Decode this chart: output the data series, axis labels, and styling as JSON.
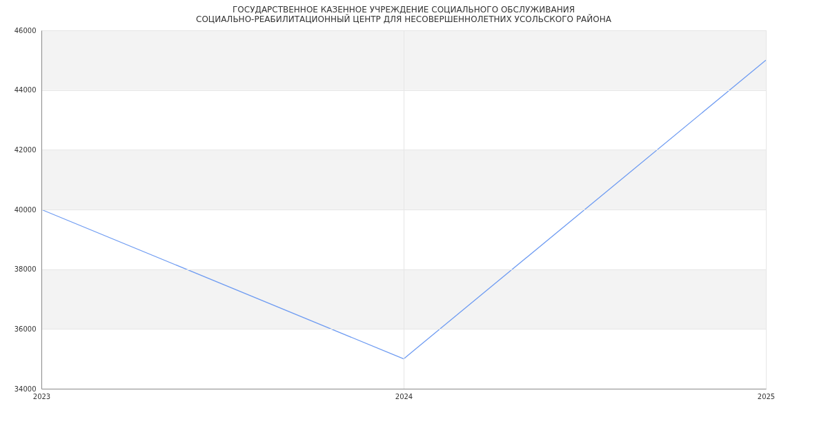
{
  "chart_data": {
    "type": "line",
    "title": "ГОСУДАРСТВЕННОЕ КАЗЕННОЕ УЧРЕЖДЕНИЕ СОЦИАЛЬНОГО ОБСЛУЖИВАНИЯ СОЦИАЛЬНО-РЕАБИЛИТАЦИОННЫЙ ЦЕНТР ДЛЯ НЕСОВЕРШЕННОЛЕТНИХ УСОЛЬСКОГО РАЙОНА",
    "categories": [
      "2023",
      "2024",
      "2025"
    ],
    "series": [
      {
        "color": "#6f9cf2",
        "values": [
          40000,
          35000,
          45000
        ]
      }
    ],
    "ylim": [
      34000,
      46000
    ],
    "yticks": [
      34000,
      36000,
      38000,
      40000,
      42000,
      44000,
      46000
    ],
    "bands": [
      {
        "axis": "y",
        "from": 36000,
        "to": 38000,
        "color": "#f3f3f3"
      },
      {
        "axis": "y",
        "from": 40000,
        "to": 42000,
        "color": "#f3f3f3"
      },
      {
        "axis": "y",
        "from": 44000,
        "to": 46000,
        "color": "#f3f3f3"
      }
    ],
    "grid": true,
    "marker": "none",
    "line_style": "solid"
  }
}
